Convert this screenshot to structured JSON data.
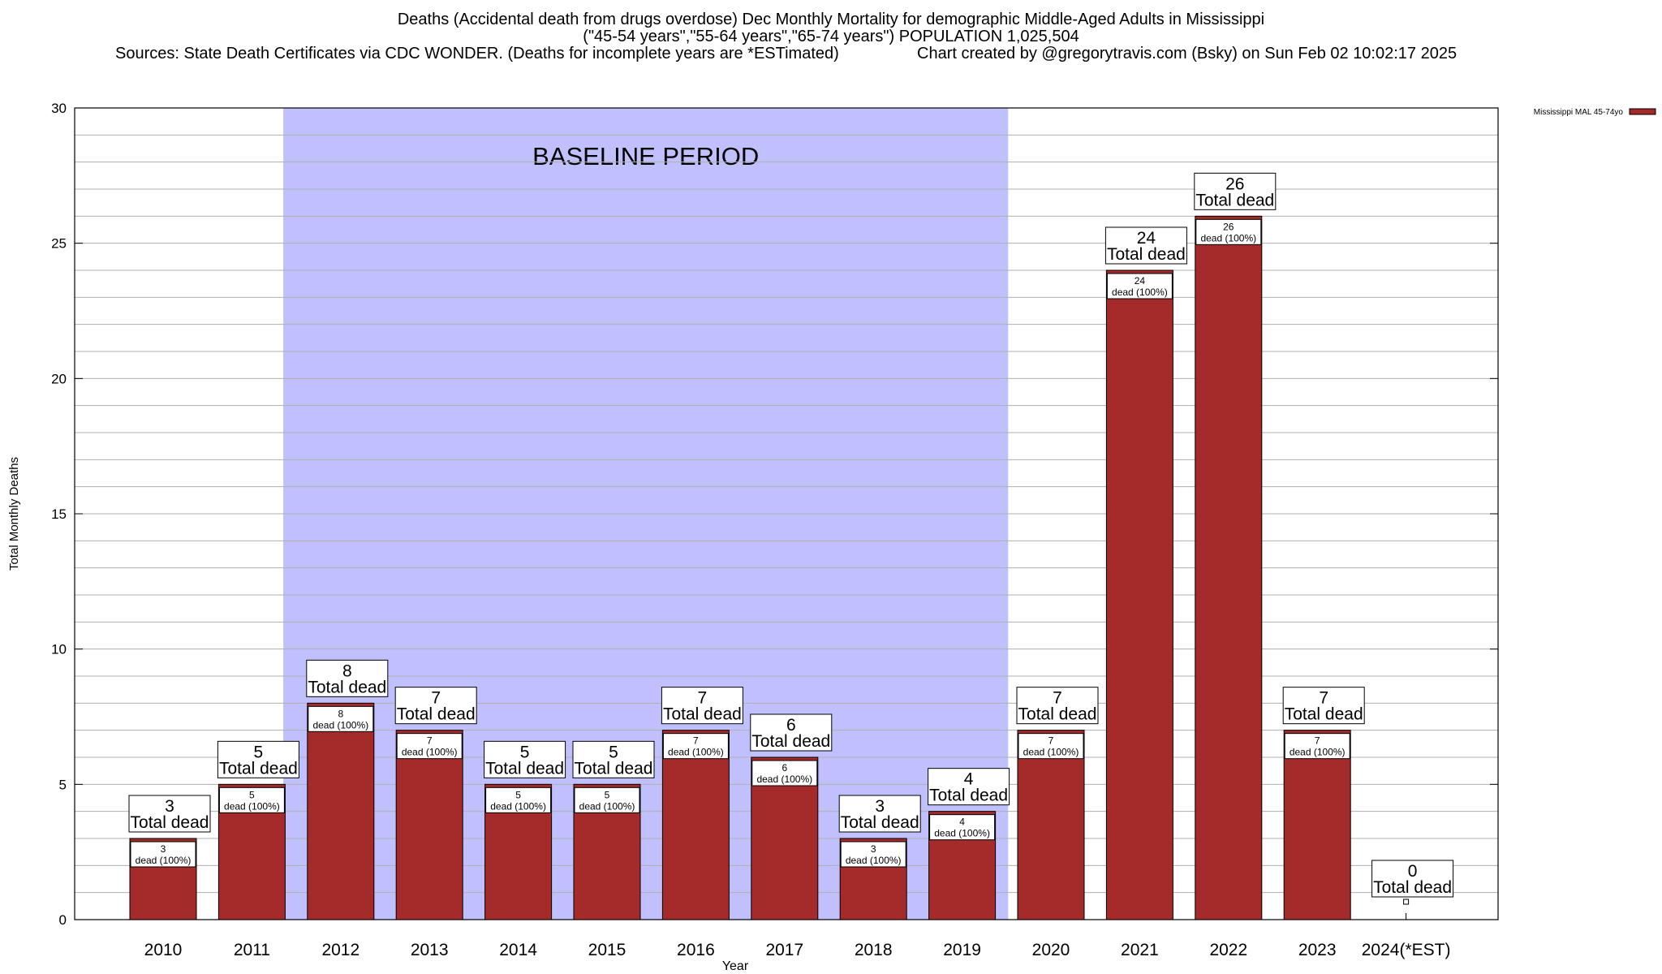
{
  "header": {
    "title_line1": "Deaths (Accidental death from drugs overdose) Dec Monthly Mortality for demographic Middle-Aged Adults in Mississippi",
    "title_line2": "(\"45-54 years\",\"55-64 years\",\"65-74 years\") POPULATION 1,025,504",
    "sources": "Sources: State Death Certificates via CDC WONDER. (Deaths for incomplete years are *ESTimated)",
    "credit": "Chart created by @gregorytravis.com (Bsky) on Sun Feb 02 10:02:17 2025"
  },
  "chart_data": {
    "type": "bar",
    "xlabel": "Year",
    "ylabel": "Total Monthly Deaths",
    "ylim": [
      0,
      30
    ],
    "yticks": [
      0,
      5,
      10,
      15,
      20,
      25,
      30
    ],
    "grid": true,
    "legend": {
      "placement": "top-right",
      "entry": "Mississippi MAL 45-74yo"
    },
    "categories": [
      "2010",
      "2011",
      "2012",
      "2013",
      "2014",
      "2015",
      "2016",
      "2017",
      "2018",
      "2019",
      "2020",
      "2021",
      "2022",
      "2023",
      "2024(*EST)"
    ],
    "series": [
      {
        "name": "Mississippi MAL 45-74yo",
        "color": "#a52a2a",
        "values": [
          3,
          5,
          8,
          7,
          5,
          5,
          7,
          6,
          3,
          4,
          7,
          24,
          26,
          7,
          0
        ]
      }
    ],
    "total_label": "Total dead",
    "segment_label": "dead (100%)",
    "baseline": {
      "label": "BASELINE PERIOD",
      "start": "2012",
      "end": "2019",
      "color": "#c0c0ff"
    }
  }
}
